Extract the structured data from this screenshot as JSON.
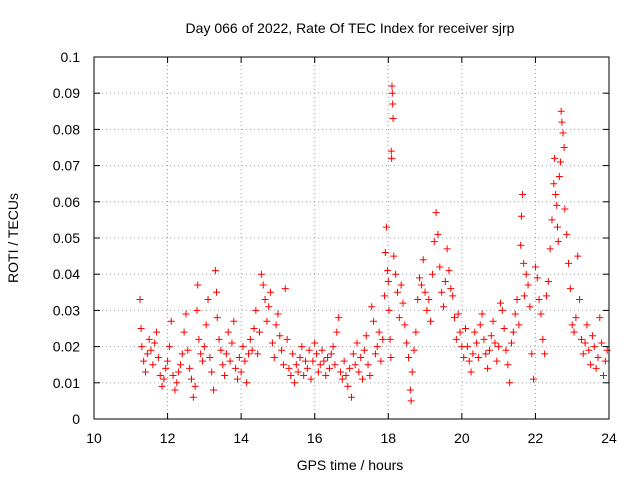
{
  "chart_data": {
    "type": "scatter",
    "title": "Day 066 of 2022, Rate Of TEC Index for receiver sjrp",
    "xlabel": "GPS time / hours",
    "ylabel": "ROTI / TECUs",
    "xlim": [
      10,
      24
    ],
    "ylim": [
      0,
      0.1
    ],
    "grid": true,
    "marker": "plus",
    "color": "#ff0000",
    "x_ticks": [
      {
        "value": 10,
        "label": "10"
      },
      {
        "value": 12,
        "label": "12"
      },
      {
        "value": 14,
        "label": "14"
      },
      {
        "value": 16,
        "label": "16"
      },
      {
        "value": 18,
        "label": "18"
      },
      {
        "value": 20,
        "label": "20"
      },
      {
        "value": 22,
        "label": "22"
      },
      {
        "value": 24,
        "label": "24"
      }
    ],
    "y_ticks": [
      {
        "value": 0,
        "label": "0"
      },
      {
        "value": 0.01,
        "label": "0.01"
      },
      {
        "value": 0.02,
        "label": "0.02"
      },
      {
        "value": 0.03,
        "label": "0.03"
      },
      {
        "value": 0.04,
        "label": "0.04"
      },
      {
        "value": 0.05,
        "label": "0.05"
      },
      {
        "value": 0.06,
        "label": "0.06"
      },
      {
        "value": 0.07,
        "label": "0.07"
      },
      {
        "value": 0.08,
        "label": "0.08"
      },
      {
        "value": 0.09,
        "label": "0.09"
      },
      {
        "value": 0.1,
        "label": "0.1"
      }
    ],
    "series": [
      {
        "name": "ROTI",
        "points": [
          [
            11.25,
            0.033
          ],
          [
            11.28,
            0.025
          ],
          [
            11.3,
            0.02
          ],
          [
            11.35,
            0.016
          ],
          [
            11.4,
            0.013
          ],
          [
            11.45,
            0.018
          ],
          [
            11.5,
            0.022
          ],
          [
            11.55,
            0.019
          ],
          [
            11.6,
            0.015
          ],
          [
            11.65,
            0.021
          ],
          [
            11.7,
            0.024
          ],
          [
            11.75,
            0.017
          ],
          [
            11.8,
            0.012
          ],
          [
            11.85,
            0.009
          ],
          [
            11.9,
            0.011
          ],
          [
            11.95,
            0.014
          ],
          [
            12.0,
            0.016
          ],
          [
            12.05,
            0.02
          ],
          [
            12.1,
            0.027
          ],
          [
            12.15,
            0.012
          ],
          [
            12.2,
            0.008
          ],
          [
            12.25,
            0.01
          ],
          [
            12.3,
            0.013
          ],
          [
            12.35,
            0.015
          ],
          [
            12.4,
            0.018
          ],
          [
            12.45,
            0.024
          ],
          [
            12.5,
            0.029
          ],
          [
            12.55,
            0.019
          ],
          [
            12.6,
            0.014
          ],
          [
            12.65,
            0.011
          ],
          [
            12.7,
            0.006
          ],
          [
            12.75,
            0.009
          ],
          [
            12.8,
            0.03
          ],
          [
            12.82,
            0.037
          ],
          [
            12.85,
            0.022
          ],
          [
            12.9,
            0.018
          ],
          [
            12.95,
            0.016
          ],
          [
            13.0,
            0.02
          ],
          [
            13.05,
            0.026
          ],
          [
            13.1,
            0.033
          ],
          [
            13.15,
            0.017
          ],
          [
            13.2,
            0.013
          ],
          [
            13.25,
            0.008
          ],
          [
            13.3,
            0.041
          ],
          [
            13.33,
            0.035
          ],
          [
            13.35,
            0.028
          ],
          [
            13.4,
            0.022
          ],
          [
            13.45,
            0.019
          ],
          [
            13.5,
            0.015
          ],
          [
            13.55,
            0.012
          ],
          [
            13.6,
            0.018
          ],
          [
            13.65,
            0.024
          ],
          [
            13.7,
            0.016
          ],
          [
            13.75,
            0.021
          ],
          [
            13.8,
            0.027
          ],
          [
            13.85,
            0.014
          ],
          [
            13.9,
            0.011
          ],
          [
            13.95,
            0.017
          ],
          [
            14.0,
            0.013
          ],
          [
            14.05,
            0.02
          ],
          [
            14.1,
            0.016
          ],
          [
            14.15,
            0.01
          ],
          [
            14.2,
            0.018
          ],
          [
            14.25,
            0.022
          ],
          [
            14.3,
            0.019
          ],
          [
            14.35,
            0.025
          ],
          [
            14.4,
            0.03
          ],
          [
            14.45,
            0.018
          ],
          [
            14.5,
            0.024
          ],
          [
            14.55,
            0.04
          ],
          [
            14.6,
            0.037
          ],
          [
            14.65,
            0.033
          ],
          [
            14.7,
            0.027
          ],
          [
            14.75,
            0.031
          ],
          [
            14.8,
            0.035
          ],
          [
            14.85,
            0.021
          ],
          [
            14.9,
            0.017
          ],
          [
            14.95,
            0.026
          ],
          [
            15.0,
            0.029
          ],
          [
            15.05,
            0.023
          ],
          [
            15.1,
            0.019
          ],
          [
            15.15,
            0.015
          ],
          [
            15.2,
            0.036
          ],
          [
            15.25,
            0.022
          ],
          [
            15.3,
            0.014
          ],
          [
            15.35,
            0.012
          ],
          [
            15.4,
            0.018
          ],
          [
            15.45,
            0.01
          ],
          [
            15.5,
            0.015
          ],
          [
            15.55,
            0.013
          ],
          [
            15.6,
            0.017
          ],
          [
            15.65,
            0.02
          ],
          [
            15.7,
            0.012
          ],
          [
            15.75,
            0.016
          ],
          [
            15.8,
            0.014
          ],
          [
            15.85,
            0.019
          ],
          [
            15.9,
            0.011
          ],
          [
            15.95,
            0.016
          ],
          [
            16.0,
            0.021
          ],
          [
            16.05,
            0.018
          ],
          [
            16.1,
            0.013
          ],
          [
            16.15,
            0.015
          ],
          [
            16.2,
            0.019
          ],
          [
            16.25,
            0.016
          ],
          [
            16.3,
            0.012
          ],
          [
            16.35,
            0.017
          ],
          [
            16.4,
            0.014
          ],
          [
            16.45,
            0.018
          ],
          [
            16.5,
            0.02
          ],
          [
            16.55,
            0.015
          ],
          [
            16.6,
            0.024
          ],
          [
            16.65,
            0.028
          ],
          [
            16.7,
            0.013
          ],
          [
            16.75,
            0.011
          ],
          [
            16.8,
            0.016
          ],
          [
            16.85,
            0.012
          ],
          [
            16.9,
            0.009
          ],
          [
            16.95,
            0.014
          ],
          [
            17.0,
            0.006
          ],
          [
            17.05,
            0.018
          ],
          [
            17.1,
            0.015
          ],
          [
            17.15,
            0.021
          ],
          [
            17.2,
            0.013
          ],
          [
            17.25,
            0.017
          ],
          [
            17.3,
            0.011
          ],
          [
            17.35,
            0.019
          ],
          [
            17.4,
            0.023
          ],
          [
            17.45,
            0.015
          ],
          [
            17.5,
            0.012
          ],
          [
            17.55,
            0.031
          ],
          [
            17.6,
            0.027
          ],
          [
            17.65,
            0.018
          ],
          [
            17.7,
            0.02
          ],
          [
            17.75,
            0.024
          ],
          [
            17.8,
            0.016
          ],
          [
            17.85,
            0.022
          ],
          [
            17.9,
            0.034
          ],
          [
            17.92,
            0.046
          ],
          [
            17.95,
            0.053
          ],
          [
            17.98,
            0.041
          ],
          [
            18.0,
            0.038
          ],
          [
            18.02,
            0.03
          ],
          [
            18.05,
            0.022
          ],
          [
            18.07,
            0.017
          ],
          [
            18.08,
            0.074
          ],
          [
            18.09,
            0.072
          ],
          [
            18.1,
            0.092
          ],
          [
            18.11,
            0.09
          ],
          [
            18.12,
            0.087
          ],
          [
            18.13,
            0.083
          ],
          [
            18.15,
            0.045
          ],
          [
            18.2,
            0.04
          ],
          [
            18.25,
            0.035
          ],
          [
            18.3,
            0.028
          ],
          [
            18.35,
            0.037
          ],
          [
            18.4,
            0.032
          ],
          [
            18.45,
            0.026
          ],
          [
            18.5,
            0.021
          ],
          [
            18.55,
            0.017
          ],
          [
            18.6,
            0.008
          ],
          [
            18.62,
            0.005
          ],
          [
            18.65,
            0.013
          ],
          [
            18.7,
            0.019
          ],
          [
            18.75,
            0.024
          ],
          [
            18.8,
            0.033
          ],
          [
            18.85,
            0.039
          ],
          [
            18.9,
            0.037
          ],
          [
            18.95,
            0.044
          ],
          [
            19.0,
            0.035
          ],
          [
            19.05,
            0.03
          ],
          [
            19.1,
            0.033
          ],
          [
            19.15,
            0.027
          ],
          [
            19.2,
            0.04
          ],
          [
            19.25,
            0.049
          ],
          [
            19.3,
            0.057
          ],
          [
            19.35,
            0.051
          ],
          [
            19.4,
            0.042
          ],
          [
            19.45,
            0.035
          ],
          [
            19.5,
            0.031
          ],
          [
            19.55,
            0.038
          ],
          [
            19.6,
            0.047
          ],
          [
            19.65,
            0.041
          ],
          [
            19.7,
            0.036
          ],
          [
            19.75,
            0.034
          ],
          [
            19.8,
            0.028
          ],
          [
            19.85,
            0.022
          ],
          [
            19.9,
            0.029
          ],
          [
            19.95,
            0.024
          ],
          [
            20.0,
            0.02
          ],
          [
            20.05,
            0.017
          ],
          [
            20.1,
            0.025
          ],
          [
            20.15,
            0.02
          ],
          [
            20.2,
            0.016
          ],
          [
            20.25,
            0.013
          ],
          [
            20.3,
            0.018
          ],
          [
            20.35,
            0.024
          ],
          [
            20.4,
            0.021
          ],
          [
            20.45,
            0.017
          ],
          [
            20.5,
            0.026
          ],
          [
            20.55,
            0.029
          ],
          [
            20.6,
            0.022
          ],
          [
            20.65,
            0.018
          ],
          [
            20.7,
            0.014
          ],
          [
            20.75,
            0.019
          ],
          [
            20.8,
            0.023
          ],
          [
            20.85,
            0.027
          ],
          [
            20.9,
            0.021
          ],
          [
            20.95,
            0.016
          ],
          [
            21.0,
            0.02
          ],
          [
            21.05,
            0.032
          ],
          [
            21.1,
            0.03
          ],
          [
            21.15,
            0.025
          ],
          [
            21.2,
            0.019
          ],
          [
            21.25,
            0.015
          ],
          [
            21.3,
            0.01
          ],
          [
            21.35,
            0.021
          ],
          [
            21.4,
            0.024
          ],
          [
            21.45,
            0.029
          ],
          [
            21.5,
            0.033
          ],
          [
            21.55,
            0.026
          ],
          [
            21.6,
            0.048
          ],
          [
            21.62,
            0.056
          ],
          [
            21.65,
            0.062
          ],
          [
            21.68,
            0.043
          ],
          [
            21.7,
            0.034
          ],
          [
            21.75,
            0.04
          ],
          [
            21.8,
            0.037
          ],
          [
            21.85,
            0.031
          ],
          [
            21.9,
            0.018
          ],
          [
            21.95,
            0.011
          ],
          [
            22.0,
            0.042
          ],
          [
            22.05,
            0.039
          ],
          [
            22.1,
            0.033
          ],
          [
            22.15,
            0.029
          ],
          [
            22.2,
            0.022
          ],
          [
            22.25,
            0.018
          ],
          [
            22.3,
            0.034
          ],
          [
            22.35,
            0.038
          ],
          [
            22.4,
            0.047
          ],
          [
            22.45,
            0.055
          ],
          [
            22.5,
            0.065
          ],
          [
            22.52,
            0.072
          ],
          [
            22.55,
            0.062
          ],
          [
            22.58,
            0.059
          ],
          [
            22.6,
            0.053
          ],
          [
            22.62,
            0.049
          ],
          [
            22.65,
            0.067
          ],
          [
            22.68,
            0.071
          ],
          [
            22.7,
            0.085
          ],
          [
            22.72,
            0.082
          ],
          [
            22.75,
            0.079
          ],
          [
            22.78,
            0.075
          ],
          [
            22.8,
            0.058
          ],
          [
            22.85,
            0.051
          ],
          [
            22.9,
            0.043
          ],
          [
            22.95,
            0.036
          ],
          [
            23.0,
            0.026
          ],
          [
            23.05,
            0.024
          ],
          [
            23.1,
            0.028
          ],
          [
            23.15,
            0.045
          ],
          [
            23.2,
            0.033
          ],
          [
            23.25,
            0.022
          ],
          [
            23.3,
            0.018
          ],
          [
            23.35,
            0.021
          ],
          [
            23.4,
            0.026
          ],
          [
            23.45,
            0.019
          ],
          [
            23.5,
            0.015
          ],
          [
            23.55,
            0.023
          ],
          [
            23.6,
            0.02
          ],
          [
            23.65,
            0.014
          ],
          [
            23.7,
            0.017
          ],
          [
            23.75,
            0.028
          ],
          [
            23.8,
            0.021
          ],
          [
            23.85,
            0.012
          ],
          [
            23.9,
            0.016
          ],
          [
            23.95,
            0.019
          ]
        ]
      }
    ]
  }
}
